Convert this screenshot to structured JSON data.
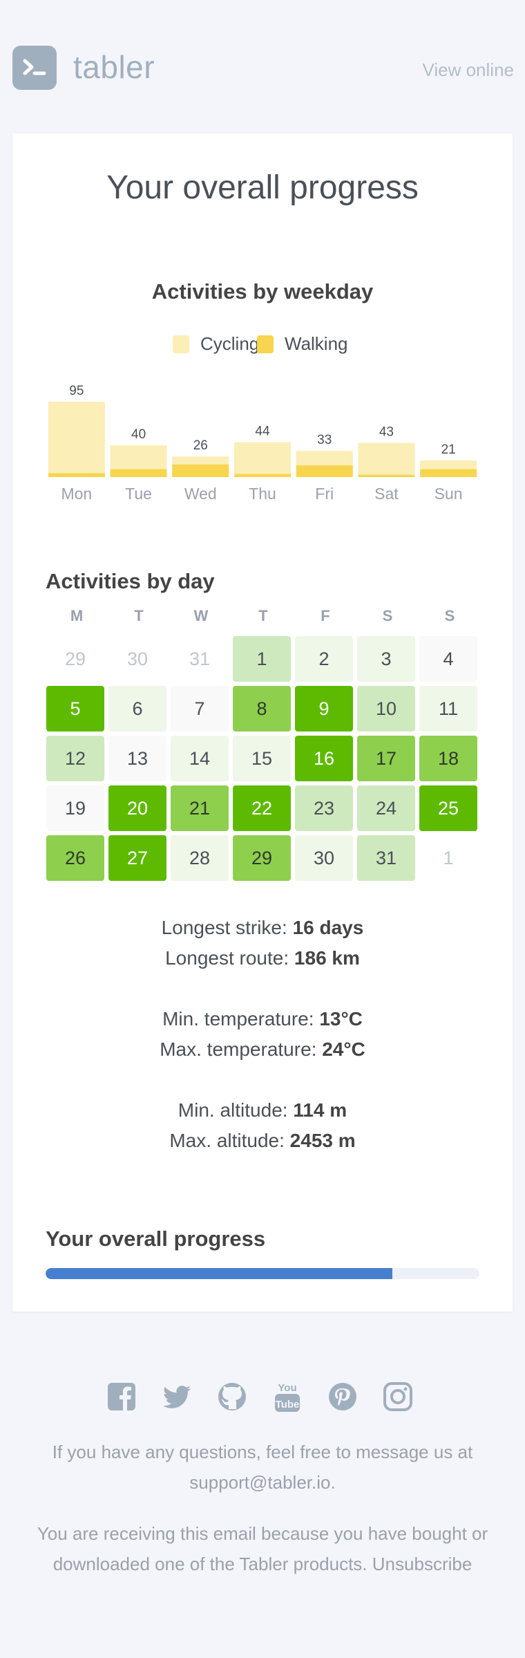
{
  "header": {
    "logo_text": "tabler",
    "view_online": "View online"
  },
  "main": {
    "title": "Your overall progress"
  },
  "weekday_chart": {
    "title": "Activities by weekday",
    "legend": [
      {
        "name": "Cycling",
        "color": "#fbeeb6"
      },
      {
        "name": "Walking",
        "color": "#f7d54e"
      }
    ]
  },
  "chart_data": {
    "type": "bar",
    "title": "Activities by weekday",
    "categories": [
      "Mon",
      "Tue",
      "Wed",
      "Thu",
      "Fri",
      "Sat",
      "Sun"
    ],
    "totals": [
      95,
      40,
      26,
      44,
      33,
      43,
      21
    ],
    "series": [
      {
        "name": "Cycling",
        "values": [
          90,
          30,
          10,
          40,
          18,
          40,
          11
        ]
      },
      {
        "name": "Walking",
        "values": [
          5,
          10,
          16,
          4,
          15,
          3,
          10
        ]
      }
    ],
    "stacked": true,
    "grid": false,
    "legend_position": "top"
  },
  "calendar": {
    "title": "Activities by day",
    "weekday_headers": [
      "M",
      "T",
      "W",
      "T",
      "F",
      "S",
      "S"
    ],
    "colors": {
      "muted": "#ffffff",
      "level0": "#f8f9f8",
      "level1": "#eef7e8",
      "level2": "#cfe9be",
      "level3": "#8ecf4e",
      "level4": "#5eba00"
    },
    "days": [
      {
        "d": "29",
        "level": "muted"
      },
      {
        "d": "30",
        "level": "muted"
      },
      {
        "d": "31",
        "level": "muted"
      },
      {
        "d": "1",
        "level": "level2"
      },
      {
        "d": "2",
        "level": "level1"
      },
      {
        "d": "3",
        "level": "level1"
      },
      {
        "d": "4",
        "level": "level0"
      },
      {
        "d": "5",
        "level": "level4"
      },
      {
        "d": "6",
        "level": "level1"
      },
      {
        "d": "7",
        "level": "level0"
      },
      {
        "d": "8",
        "level": "level3"
      },
      {
        "d": "9",
        "level": "level4"
      },
      {
        "d": "10",
        "level": "level2"
      },
      {
        "d": "11",
        "level": "level1"
      },
      {
        "d": "12",
        "level": "level2"
      },
      {
        "d": "13",
        "level": "level0"
      },
      {
        "d": "14",
        "level": "level1"
      },
      {
        "d": "15",
        "level": "level1"
      },
      {
        "d": "16",
        "level": "level4"
      },
      {
        "d": "17",
        "level": "level3"
      },
      {
        "d": "18",
        "level": "level3"
      },
      {
        "d": "19",
        "level": "level0"
      },
      {
        "d": "20",
        "level": "level4"
      },
      {
        "d": "21",
        "level": "level3"
      },
      {
        "d": "22",
        "level": "level4"
      },
      {
        "d": "23",
        "level": "level2"
      },
      {
        "d": "24",
        "level": "level2"
      },
      {
        "d": "25",
        "level": "level4"
      },
      {
        "d": "26",
        "level": "level3"
      },
      {
        "d": "27",
        "level": "level4"
      },
      {
        "d": "28",
        "level": "level1"
      },
      {
        "d": "29",
        "level": "level3"
      },
      {
        "d": "30",
        "level": "level1"
      },
      {
        "d": "31",
        "level": "level2"
      },
      {
        "d": "1",
        "level": "muted"
      }
    ]
  },
  "stats": [
    {
      "label": "Longest strike:",
      "value": "16 days"
    },
    {
      "label": "Longest route:",
      "value": "186 km"
    },
    {
      "label": "Min. temperature:",
      "value": "13°C"
    },
    {
      "label": "Max. temperature:",
      "value": "24°C"
    },
    {
      "label": "Min. altitude:",
      "value": "114 m"
    },
    {
      "label": "Max. altitude:",
      "value": "2453 m"
    }
  ],
  "progress": {
    "title": "Your overall progress",
    "value_fraction": 0.8,
    "color": "#467fcf"
  },
  "footer": {
    "social_icons": [
      "facebook-icon",
      "twitter-icon",
      "github-icon",
      "youtube-icon",
      "pinterest-icon",
      "instagram-icon"
    ],
    "contact_text": "If you have any questions, feel free to message us at",
    "contact_email": "support@tabler.io.",
    "receiving_text": "You are receiving this email because you have bought or downloaded one of the Tabler products.",
    "unsubscribe": "Unsubscribe"
  }
}
